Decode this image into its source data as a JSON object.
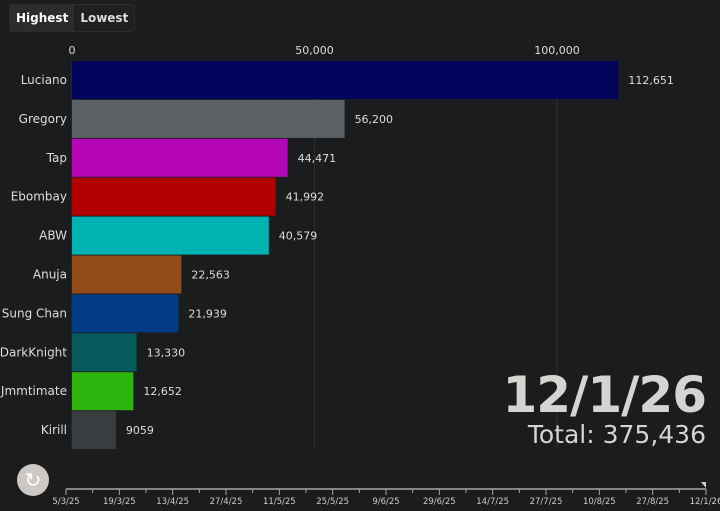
{
  "controls": {
    "highest_label": "Highest",
    "lowest_label": "Lowest",
    "selected": "Highest",
    "replay_icon": "replay-icon"
  },
  "date_label": "12/1/26",
  "total_label": "Total: 375,436",
  "chart_data": {
    "type": "bar",
    "orientation": "horizontal",
    "categories": [
      "Luciano",
      "Gregory",
      "Tap",
      "Ebombay",
      "ABW",
      "Anuja",
      "Sung Chan",
      "DarkKnight",
      "Jmmtimate",
      "Kirill"
    ],
    "values": [
      112651,
      56200,
      44471,
      41992,
      40579,
      22563,
      21939,
      13330,
      12652,
      9059
    ],
    "value_labels": [
      "112,651",
      "56,200",
      "44,471",
      "41,992",
      "40,579",
      "22,563",
      "21,939",
      "13,330",
      "12,652",
      "9059"
    ],
    "colors": [
      "#03045b",
      "#5a6064",
      "#b405b6",
      "#b00000",
      "#00b3b3",
      "#934b1a",
      "#033c86",
      "#055a5c",
      "#2eb50d",
      "#3a3d40"
    ],
    "xlim": [
      0,
      120000
    ],
    "xticks": [
      0,
      50000,
      100000
    ],
    "xtick_labels": [
      "0",
      "50,000",
      "100,000"
    ],
    "grid": true,
    "timeline_labels": [
      "5/3/25",
      "19/3/25",
      "13/4/25",
      "27/4/25",
      "11/5/25",
      "25/5/25",
      "9/6/25",
      "29/6/25",
      "14/7/25",
      "27/7/25",
      "10/8/25",
      "27/8/25",
      "12/1/26"
    ],
    "timeline_position": 1.0
  }
}
